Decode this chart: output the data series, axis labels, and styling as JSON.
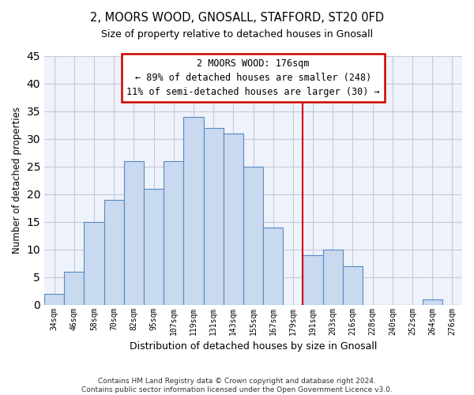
{
  "title": "2, MOORS WOOD, GNOSALL, STAFFORD, ST20 0FD",
  "subtitle": "Size of property relative to detached houses in Gnosall",
  "xlabel": "Distribution of detached houses by size in Gnosall",
  "ylabel": "Number of detached properties",
  "footnote1": "Contains HM Land Registry data © Crown copyright and database right 2024.",
  "footnote2": "Contains public sector information licensed under the Open Government Licence v3.0.",
  "bins": [
    "34sqm",
    "46sqm",
    "58sqm",
    "70sqm",
    "82sqm",
    "95sqm",
    "107sqm",
    "119sqm",
    "131sqm",
    "143sqm",
    "155sqm",
    "167sqm",
    "179sqm",
    "191sqm",
    "203sqm",
    "216sqm",
    "228sqm",
    "240sqm",
    "252sqm",
    "264sqm",
    "276sqm"
  ],
  "values": [
    2,
    6,
    15,
    19,
    26,
    21,
    26,
    34,
    32,
    31,
    25,
    14,
    0,
    9,
    10,
    7,
    0,
    0,
    0,
    1,
    0
  ],
  "bar_color": "#c8d9f0",
  "bar_edge_color": "#5a8abf",
  "grid_color": "#c8c8d8",
  "vline_color": "#cc0000",
  "vline_pos": 12.5,
  "annotation_title": "2 MOORS WOOD: 176sqm",
  "annotation_line1": "← 89% of detached houses are smaller (248)",
  "annotation_line2": "11% of semi-detached houses are larger (30) →",
  "annotation_box_color": "#ffffff",
  "annotation_box_edge": "#cc0000",
  "ylim": [
    0,
    45
  ],
  "yticks": [
    0,
    5,
    10,
    15,
    20,
    25,
    30,
    35,
    40,
    45
  ]
}
